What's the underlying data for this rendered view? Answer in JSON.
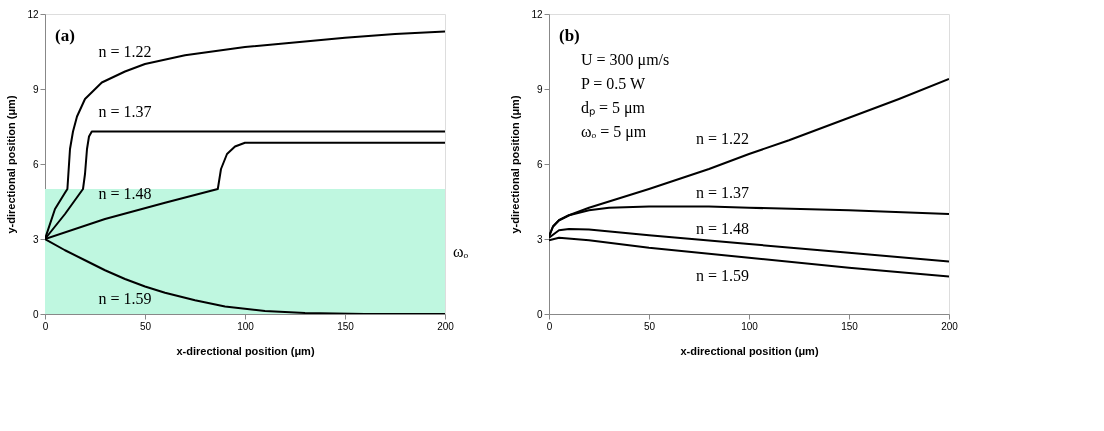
{
  "chart_data": [
    {
      "type": "line",
      "xlabel": "x-directional position (μm)",
      "ylabel": "y-directional position (μm)",
      "xlim": [
        0,
        200
      ],
      "ylim": [
        0,
        12
      ],
      "xticks": [
        0,
        50,
        100,
        150,
        200
      ],
      "yticks": [
        0,
        3,
        6,
        9,
        12
      ],
      "line_style": "solid",
      "annotations": [
        "(a)"
      ],
      "bands": [
        {
          "axis": "y",
          "from": 0,
          "to": 5,
          "label": "ωₒ",
          "color": "#bff7e0"
        }
      ],
      "series": [
        {
          "name": "n = 1.22",
          "color": "#000000",
          "x": [
            0,
            5,
            10,
            11.2,
            12.5,
            14,
            16,
            20,
            28.4,
            40,
            50,
            70,
            100,
            130,
            150,
            175,
            200
          ],
          "values": [
            3,
            4.2,
            4.85,
            5,
            6.6,
            7.3,
            7.9,
            8.6,
            9.26,
            9.7,
            10,
            10.35,
            10.68,
            10.9,
            11.05,
            11.2,
            11.3
          ]
        },
        {
          "name": "n = 1.37",
          "color": "#000000",
          "x": [
            0,
            10,
            19,
            20,
            21,
            22,
            23.4,
            200
          ],
          "values": [
            3,
            4.0,
            5,
            5.6,
            6.6,
            7.1,
            7.3,
            7.3
          ]
        },
        {
          "name": "n = 1.48",
          "color": "#000000",
          "x": [
            0,
            30,
            60,
            86.4,
            88,
            91,
            95,
            100,
            200
          ],
          "values": [
            3,
            3.8,
            4.45,
            5,
            5.8,
            6.4,
            6.7,
            6.85,
            6.85
          ]
        },
        {
          "name": "n = 1.59",
          "color": "#000000",
          "x": [
            0,
            10,
            20,
            30,
            40,
            50,
            60,
            75,
            90,
            110,
            130,
            160,
            200
          ],
          "values": [
            3,
            2.55,
            2.15,
            1.75,
            1.4,
            1.1,
            0.85,
            0.55,
            0.3,
            0.12,
            0.04,
            0,
            0
          ]
        }
      ]
    },
    {
      "type": "line",
      "xlabel": "x-directional position (μm)",
      "ylabel": "y-directional position (μm)",
      "xlim": [
        0,
        200
      ],
      "ylim": [
        0,
        12
      ],
      "xticks": [
        0,
        50,
        100,
        150,
        200
      ],
      "yticks": [
        0,
        3,
        6,
        9,
        12
      ],
      "line_style": "solid",
      "annotations": [
        "(b)",
        "U = 300 μm/s",
        "P = 0.5 W",
        "dₚ = 5 μm",
        "ωₒ = 5 μm"
      ],
      "series": [
        {
          "name": "n = 1.22",
          "color": "#000000",
          "x": [
            0,
            2,
            5,
            10,
            20,
            50,
            80,
            100,
            120,
            150,
            175,
            200
          ],
          "values": [
            3.1,
            3.5,
            3.75,
            3.95,
            4.25,
            5.0,
            5.8,
            6.4,
            6.95,
            7.85,
            8.6,
            9.4
          ]
        },
        {
          "name": "n = 1.37",
          "color": "#000000",
          "x": [
            0,
            2,
            5,
            10,
            20,
            30,
            50,
            80,
            100,
            150,
            200
          ],
          "values": [
            3.1,
            3.5,
            3.75,
            3.95,
            4.15,
            4.25,
            4.3,
            4.3,
            4.25,
            4.15,
            4.0
          ]
        },
        {
          "name": "n = 1.48",
          "color": "#000000",
          "x": [
            0,
            5,
            10,
            20,
            50,
            100,
            150,
            200
          ],
          "values": [
            3.05,
            3.35,
            3.4,
            3.38,
            3.15,
            2.8,
            2.45,
            2.1
          ]
        },
        {
          "name": "n = 1.59",
          "color": "#000000",
          "x": [
            0,
            5,
            20,
            50,
            100,
            150,
            200
          ],
          "values": [
            2.95,
            3.05,
            2.95,
            2.65,
            2.25,
            1.85,
            1.5
          ]
        }
      ]
    }
  ]
}
